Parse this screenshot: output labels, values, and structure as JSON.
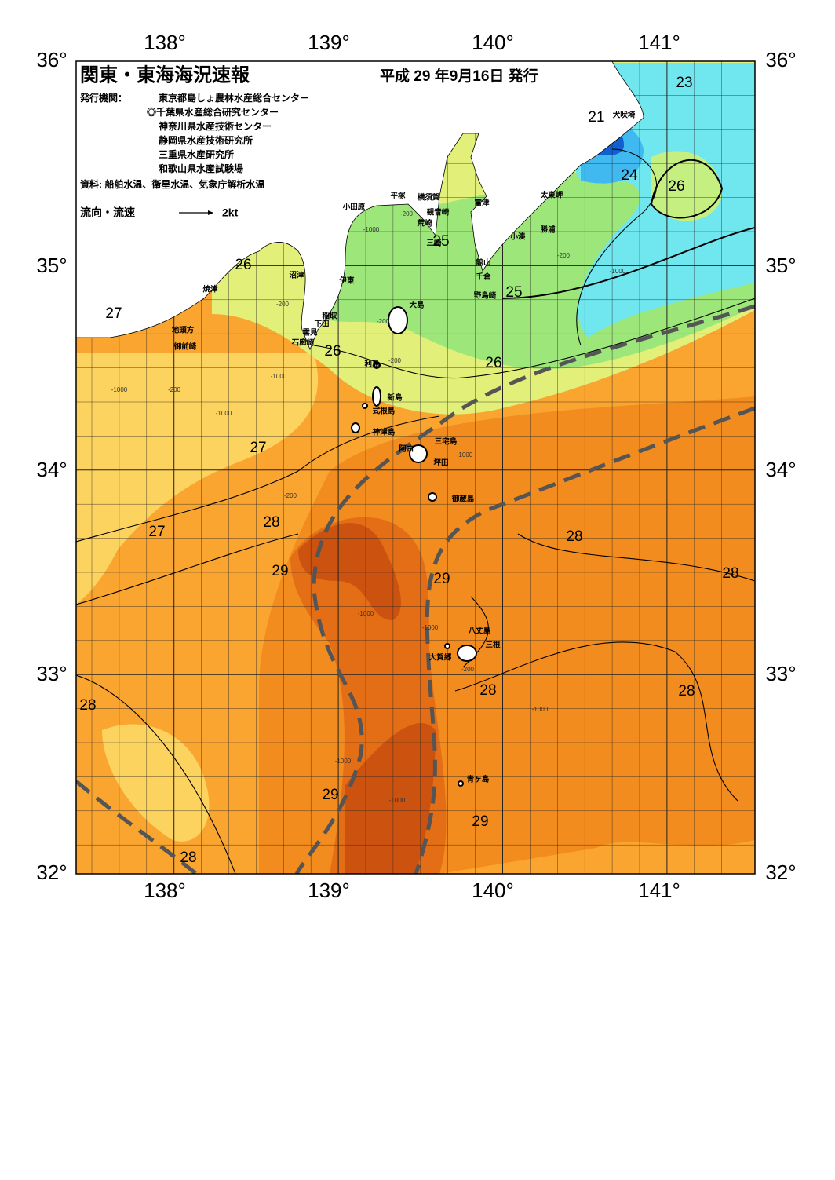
{
  "header": {
    "title": "関東・東海海況速報",
    "date": "平成 29 年9月16日 発行",
    "issuers_label": "発行機関：",
    "issuers": [
      "東京都島しょ農林水産総合センター",
      "◎千葉県水産総合研究センター",
      "神奈川県水産技術センター",
      "静岡県水産技術研究所",
      "三重県水産研究所",
      "和歌山県水産試験場"
    ],
    "source": "資料: 船舶水温、衛星水温、気象庁解析水温"
  },
  "legend": {
    "label": "流向・流速",
    "speed": "2kt"
  },
  "axes": {
    "longitudes": [
      "138°",
      "139°",
      "140°",
      "141°"
    ],
    "latitudes": [
      "36°",
      "35°",
      "34°",
      "33°",
      "32°"
    ]
  },
  "temperature_labels": [
    "23",
    "21",
    "24",
    "26",
    "25",
    "26",
    "25",
    "27",
    "26",
    "26",
    "27",
    "28",
    "27",
    "28",
    "29",
    "29",
    "28",
    "28",
    "28",
    "28",
    "29",
    "29",
    "28"
  ],
  "place_names": [
    "犬吠埼",
    "太東岬",
    "勝浦",
    "小湊",
    "富津",
    "横須賀",
    "平塚",
    "小田原",
    "観音崎",
    "荒崎",
    "三崎",
    "館山",
    "千倉",
    "野島崎",
    "沼津",
    "伊東",
    "焼津",
    "大島",
    "稲取",
    "下田",
    "雲見",
    "石廊崎",
    "地頭方",
    "御前崎",
    "利島",
    "新島",
    "式根島",
    "神津島",
    "三宅島",
    "阿古",
    "坪田",
    "御蔵島",
    "八丈島",
    "三根",
    "大賀郷",
    "青ヶ島"
  ],
  "depth_labels": [
    "-1000",
    "-200",
    "-200",
    "-1000",
    "-200",
    "-1000",
    "-200",
    "-1000",
    "-1000",
    "-200",
    "-1000",
    "-1000",
    "-200",
    "-1000",
    "-1000",
    "-1000",
    "-1000",
    "-200",
    "-200"
  ]
}
